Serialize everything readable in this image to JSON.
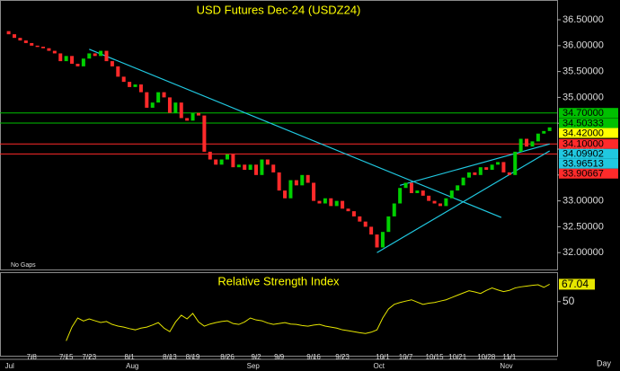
{
  "chart_data": [
    {
      "type": "candlestick",
      "title": "USD Futures Dec-24 (USDZ24)",
      "annotation": "No Gaps",
      "open": [
        36.28,
        36.22,
        36.15,
        36.1,
        36.05,
        36.0,
        35.98,
        35.95,
        35.9,
        35.85,
        35.7,
        35.8,
        35.65,
        35.6,
        35.75,
        35.85,
        35.8,
        35.9,
        35.7,
        35.6,
        35.4,
        35.3,
        35.2,
        35.25,
        35.1,
        34.8,
        34.9,
        35.1,
        35.0,
        34.7,
        34.9,
        34.6,
        34.55,
        34.7,
        34.65,
        33.95,
        33.8,
        33.7,
        33.8,
        33.9,
        33.65,
        33.7,
        33.6,
        33.7,
        33.5,
        33.8,
        33.7,
        33.55,
        33.2,
        33.05,
        33.4,
        33.3,
        33.5,
        33.35,
        33.0,
        32.95,
        33.05,
        32.9,
        33.0,
        32.85,
        32.8,
        32.7,
        32.6,
        32.5,
        32.35,
        32.1,
        32.4,
        32.7,
        32.95,
        33.25,
        33.35,
        33.15,
        33.2,
        33.1,
        33.0,
        32.95,
        32.9,
        33.05,
        33.2,
        33.3,
        33.45,
        33.55,
        33.5,
        33.65,
        33.6,
        33.7,
        33.75,
        33.55,
        33.5,
        33.95,
        34.2,
        34.05,
        34.15,
        34.3,
        34.35
      ],
      "close": [
        36.22,
        36.15,
        36.1,
        36.05,
        36.0,
        35.98,
        35.95,
        35.9,
        35.85,
        35.7,
        35.8,
        35.65,
        35.6,
        35.75,
        35.85,
        35.8,
        35.9,
        35.7,
        35.6,
        35.4,
        35.3,
        35.2,
        35.25,
        35.1,
        34.8,
        34.9,
        35.1,
        35.0,
        34.7,
        34.9,
        34.6,
        34.55,
        34.7,
        34.65,
        33.95,
        33.8,
        33.7,
        33.8,
        33.9,
        33.65,
        33.7,
        33.6,
        33.7,
        33.5,
        33.8,
        33.7,
        33.55,
        33.2,
        33.05,
        33.4,
        33.3,
        33.5,
        33.35,
        33.0,
        32.95,
        33.05,
        32.9,
        33.0,
        32.85,
        32.8,
        32.7,
        32.6,
        32.5,
        32.35,
        32.1,
        32.4,
        32.7,
        32.95,
        33.25,
        33.35,
        33.15,
        33.2,
        33.1,
        33.0,
        32.95,
        32.9,
        33.05,
        33.2,
        33.3,
        33.45,
        33.55,
        33.5,
        33.65,
        33.6,
        33.7,
        33.75,
        33.55,
        33.5,
        33.95,
        34.2,
        34.05,
        34.15,
        34.3,
        34.35,
        34.42
      ],
      "color_up": "#00d000",
      "color_down": "#ff2a2a",
      "xlim": [
        -1.5,
        95.3
      ],
      "ylim": [
        31.674,
        36.882
      ],
      "yticks": [
        {
          "value": 36.5,
          "label": "36.50000"
        },
        {
          "value": 36.0,
          "label": "36.00000"
        },
        {
          "value": 35.5,
          "label": "35.50000"
        },
        {
          "value": 35.0,
          "label": "35.00000"
        },
        {
          "value": 34.5,
          "label": "34.50000"
        },
        {
          "value": 34.0,
          "label": "34.00000"
        },
        {
          "value": 33.5,
          "label": "33.50000"
        },
        {
          "value": 33.0,
          "label": "33.00000"
        },
        {
          "value": 32.5,
          "label": "32.50000"
        },
        {
          "value": 32.0,
          "label": "32.00000"
        }
      ],
      "levels": [
        {
          "value": 34.7,
          "label": "34.70000",
          "color": "#00c000"
        },
        {
          "value": 34.50333,
          "color": "#00c000"
        },
        {
          "value": 34.1,
          "label": "34.10000",
          "color": "#ff2a2a"
        },
        {
          "value": 33.90667,
          "color": "#ff2a2a"
        }
      ],
      "last_price": {
        "value": 34.42,
        "label": "34.42000",
        "color": "#ffff00"
      },
      "trendlines": [
        {
          "x": [
            14,
            85.6
          ],
          "y": [
            35.93,
            32.68
          ],
          "color": "#20c8e0"
        },
        {
          "x": [
            68,
            94
          ],
          "y": [
            33.3,
            34.09902
          ],
          "color": "#20c8e0"
        },
        {
          "x": [
            64,
            94
          ],
          "y": [
            32.0,
            33.96513
          ],
          "color": "#20c8e0"
        }
      ]
    },
    {
      "type": "line",
      "title": "Relative Strength Index",
      "x_label": "Day",
      "color": "#e6e600",
      "categories": [
        null,
        null,
        null,
        null,
        "7/8",
        null,
        null,
        null,
        null,
        null,
        "7/15",
        null,
        null,
        null,
        "7/23",
        null,
        null,
        null,
        null,
        null,
        null,
        "8/1",
        null,
        null,
        null,
        null,
        null,
        null,
        "8/13",
        null,
        null,
        null,
        "8/19",
        null,
        null,
        null,
        null,
        null,
        "8/26",
        null,
        null,
        null,
        null,
        "9/2",
        null,
        null,
        null,
        "9/9",
        null,
        null,
        null,
        null,
        null,
        "9/16",
        null,
        null,
        null,
        null,
        "9/23",
        null,
        null,
        null,
        null,
        null,
        null,
        "10/1",
        null,
        null,
        null,
        "10/7",
        null,
        null,
        null,
        null,
        "10/15",
        null,
        null,
        null,
        "10/21",
        null,
        null,
        null,
        null,
        "10/28",
        null,
        null,
        null,
        "11/1",
        null,
        null,
        null,
        null,
        null,
        null,
        null
      ],
      "months": [
        "Jul",
        null,
        null,
        null,
        null,
        null,
        null,
        null,
        null,
        null,
        null,
        null,
        null,
        null,
        null,
        null,
        null,
        null,
        null,
        null,
        null,
        "Aug",
        null,
        null,
        null,
        null,
        null,
        null,
        null,
        null,
        null,
        null,
        null,
        null,
        null,
        null,
        null,
        null,
        null,
        null,
        null,
        null,
        "Sep",
        null,
        null,
        null,
        null,
        null,
        null,
        null,
        null,
        null,
        null,
        null,
        null,
        null,
        null,
        null,
        null,
        null,
        null,
        null,
        null,
        null,
        "Oct",
        null,
        null,
        null,
        null,
        null,
        null,
        null,
        null,
        null,
        null,
        null,
        null,
        null,
        null,
        null,
        null,
        null,
        null,
        null,
        null,
        null,
        "Nov",
        null,
        null,
        null,
        null,
        null,
        null,
        null,
        null
      ],
      "values": [
        null,
        null,
        null,
        null,
        null,
        null,
        null,
        null,
        null,
        null,
        11.5,
        25.0,
        33.9,
        31.0,
        33.0,
        31.2,
        29.5,
        30.5,
        27.6,
        26.0,
        25.0,
        23.5,
        22.3,
        24.0,
        25.0,
        27.0,
        29.4,
        24.0,
        20.5,
        30.0,
        36.6,
        33.0,
        38.4,
        30.0,
        25.9,
        28.0,
        29.4,
        30.5,
        31.2,
        28.5,
        27.6,
        30.0,
        33.9,
        32.0,
        31.2,
        29.0,
        27.6,
        28.5,
        29.4,
        28.0,
        27.6,
        26.5,
        25.9,
        27.0,
        27.6,
        26.0,
        25.0,
        24.0,
        22.3,
        21.5,
        20.5,
        19.5,
        18.7,
        20.0,
        22.3,
        33.9,
        42.8,
        47.3,
        49.1,
        50.5,
        51.8,
        49.5,
        47.3,
        48.5,
        49.1,
        50.5,
        51.8,
        54.0,
        56.3,
        58.5,
        60.7,
        59.5,
        58.0,
        61.0,
        63.4,
        61.5,
        59.8,
        61.0,
        63.4,
        64.5,
        65.2,
        66.0,
        66.5,
        64.0,
        67.04
      ],
      "xlim": [
        -1.5,
        95.3
      ],
      "ylim": [
        -4,
        78
      ],
      "yticks": [
        50
      ]
    }
  ]
}
